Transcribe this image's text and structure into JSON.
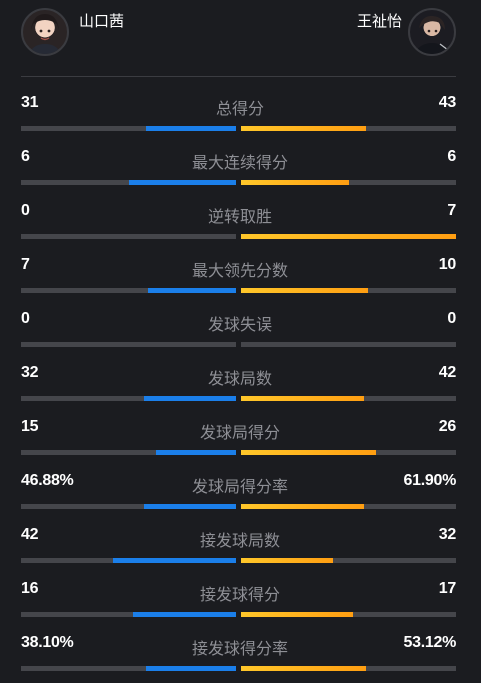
{
  "players": {
    "left": {
      "name": "山口茜",
      "color": "#1b7fea"
    },
    "right": {
      "name": "王祉怡",
      "color": "#ffa41a"
    }
  },
  "stats": [
    {
      "label": "总得分",
      "left": "31",
      "right": "43",
      "left_fill": 0.42,
      "right_fill": 0.58
    },
    {
      "label": "最大连续得分",
      "left": "6",
      "right": "6",
      "left_fill": 0.5,
      "right_fill": 0.5
    },
    {
      "label": "逆转取胜",
      "left": "0",
      "right": "7",
      "left_fill": 0.0,
      "right_fill": 1.0
    },
    {
      "label": "最大领先分数",
      "left": "7",
      "right": "10",
      "left_fill": 0.41,
      "right_fill": 0.59
    },
    {
      "label": "发球失误",
      "left": "0",
      "right": "0",
      "left_fill": 0.0,
      "right_fill": 0.0
    },
    {
      "label": "发球局数",
      "left": "32",
      "right": "42",
      "left_fill": 0.43,
      "right_fill": 0.57
    },
    {
      "label": "发球局得分",
      "left": "15",
      "right": "26",
      "left_fill": 0.37,
      "right_fill": 0.63
    },
    {
      "label": "发球局得分率",
      "left": "46.88%",
      "right": "61.90%",
      "left_fill": 0.43,
      "right_fill": 0.57
    },
    {
      "label": "接发球局数",
      "left": "42",
      "right": "32",
      "left_fill": 0.57,
      "right_fill": 0.43
    },
    {
      "label": "接发球得分",
      "left": "16",
      "right": "17",
      "left_fill": 0.48,
      "right_fill": 0.52
    },
    {
      "label": "接发球得分率",
      "left": "38.10%",
      "right": "53.12%",
      "left_fill": 0.42,
      "right_fill": 0.58
    }
  ]
}
